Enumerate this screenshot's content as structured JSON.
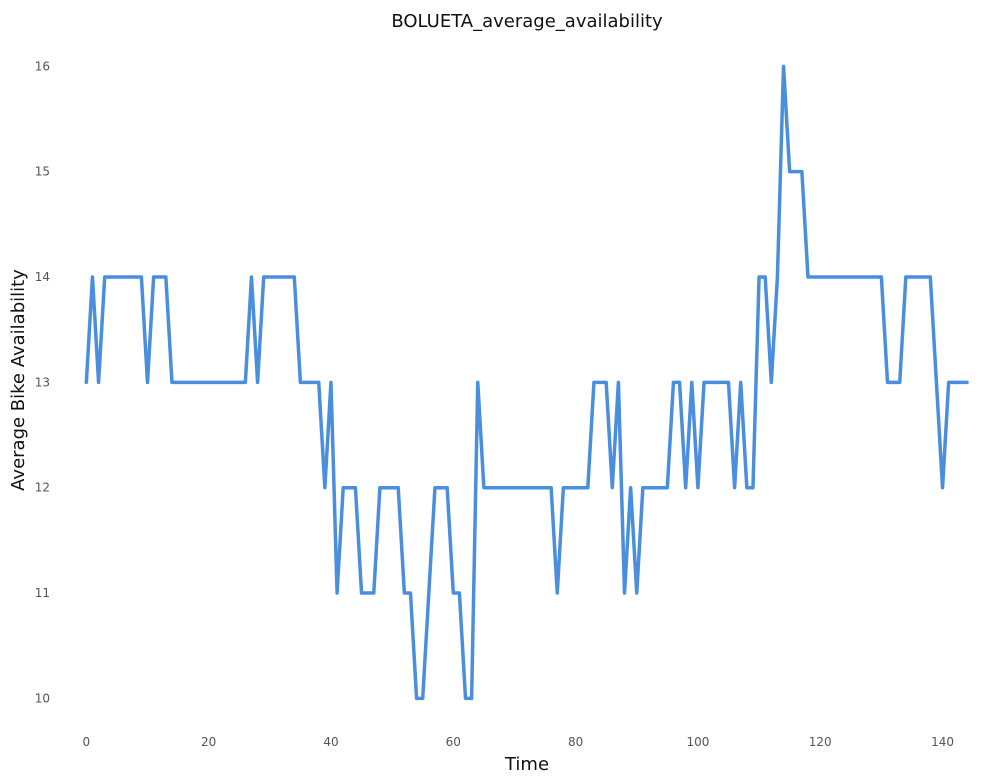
{
  "chart_data": {
    "type": "line",
    "title": "BOLUETA_average_availability",
    "xlabel": "Time",
    "ylabel": "Average Bike Availability",
    "xlim": [
      -3,
      144
    ],
    "ylim": [
      9.7,
      16.25
    ],
    "xticks": [
      0,
      20,
      40,
      60,
      80,
      100,
      120,
      140
    ],
    "yticks": [
      10,
      11,
      12,
      13,
      14,
      15,
      16
    ],
    "grid": false,
    "legend": "none",
    "line_color": "#4a8ede",
    "series": [
      {
        "values": [
          13,
          14,
          13,
          14,
          14,
          14,
          14,
          14,
          14,
          14,
          13,
          14,
          14,
          14,
          13,
          13,
          13,
          13,
          13,
          13,
          13,
          13,
          13,
          13,
          13,
          13,
          13,
          14,
          13,
          14,
          14,
          14,
          14,
          14,
          14,
          13,
          13,
          13,
          13,
          12,
          13,
          11,
          12,
          12,
          12,
          11,
          11,
          11,
          12,
          12,
          12,
          12,
          11,
          11,
          10,
          10,
          11,
          12,
          12,
          12,
          11,
          11,
          10,
          10,
          13,
          12,
          12,
          12,
          12,
          12,
          12,
          12,
          12,
          12,
          12,
          12,
          12,
          11,
          12,
          12,
          12,
          12,
          12,
          13,
          13,
          13,
          12,
          13,
          11,
          12,
          11,
          12,
          12,
          12,
          12,
          12,
          13,
          13,
          12,
          13,
          12,
          13,
          13,
          13,
          13,
          13,
          12,
          13,
          12,
          12,
          14,
          14,
          13,
          14,
          16,
          15,
          15,
          15,
          14,
          14,
          14,
          14,
          14,
          14,
          14,
          14,
          14,
          14,
          14,
          14,
          14,
          13,
          13,
          13,
          14,
          14,
          14,
          14,
          14,
          13,
          12,
          13,
          13,
          13,
          13
        ]
      }
    ]
  }
}
